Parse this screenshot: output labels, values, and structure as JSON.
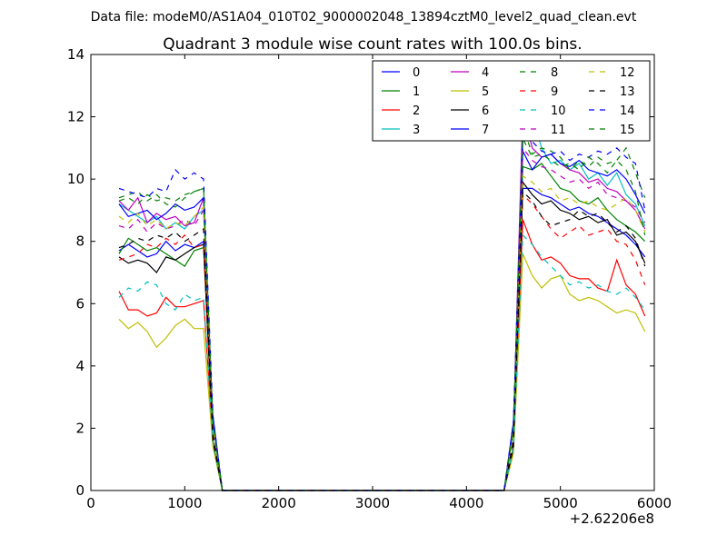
{
  "chart_data": {
    "type": "line",
    "suptitle": "Data file: modeM0/AS1A04_010T02_9000002048_13894cztM0_level2_quad_clean.evt",
    "title": "Quadrant 3 module wise count rates with 100.0s bins.",
    "xlabel": "",
    "ylabel": "",
    "x_offset_label": "+2.62206e8",
    "xlim": [
      0,
      6000
    ],
    "ylim": [
      0,
      14
    ],
    "xticks": [
      0,
      1000,
      2000,
      3000,
      4000,
      5000,
      6000
    ],
    "yticks": [
      0,
      2,
      4,
      6,
      8,
      10,
      12,
      14
    ],
    "legend_position": "top-right",
    "x": [
      300,
      400,
      500,
      600,
      700,
      800,
      900,
      1000,
      1100,
      1200,
      1300,
      1400,
      1500,
      1600,
      1700,
      1800,
      1900,
      2000,
      2100,
      2200,
      2300,
      2400,
      2500,
      2600,
      2700,
      2800,
      2900,
      3000,
      3100,
      3200,
      3300,
      3400,
      3500,
      3600,
      3700,
      3800,
      3900,
      4000,
      4100,
      4200,
      4300,
      4400,
      4500,
      4600,
      4700,
      4800,
      4900,
      5000,
      5100,
      5200,
      5300,
      5400,
      5500,
      5600,
      5700,
      5800,
      5900
    ],
    "series": [
      {
        "name": "0",
        "color": "#0000ff",
        "dash": "solid",
        "pre": [
          7.7,
          7.9,
          7.7,
          7.5,
          7.6,
          8.0,
          7.7,
          7.9,
          7.8,
          8.0
        ],
        "peak": 2.4,
        "post": [
          2.2,
          9.7,
          9.7,
          9.5,
          9.4,
          9.2,
          9.0,
          9.1,
          8.9,
          8.8,
          8.6,
          8.4,
          8.2,
          7.9,
          7.5
        ]
      },
      {
        "name": "1",
        "color": "#008000",
        "dash": "solid",
        "pre": [
          7.6,
          8.1,
          7.9,
          7.7,
          7.8,
          7.6,
          7.4,
          7.2,
          7.7,
          7.8
        ],
        "peak": 1.6,
        "post": [
          1.4,
          10.4,
          10.3,
          10.5,
          10.1,
          9.7,
          9.6,
          9.3,
          9.2,
          9.4,
          9.0,
          8.7,
          8.5,
          8.3,
          8.0
        ]
      },
      {
        "name": "2",
        "color": "#ff0000",
        "dash": "solid",
        "pre": [
          6.4,
          5.8,
          5.8,
          5.6,
          5.7,
          6.2,
          5.9,
          5.9,
          6.0,
          6.1
        ],
        "peak": 1.6,
        "post": [
          1.4,
          8.7,
          7.9,
          7.4,
          7.5,
          7.3,
          6.9,
          6.8,
          6.8,
          6.5,
          6.4,
          7.4,
          6.6,
          6.3,
          5.6
        ]
      },
      {
        "name": "3",
        "color": "#00bfbf",
        "dash": "solid",
        "pre": [
          9.2,
          9.0,
          8.8,
          8.6,
          8.8,
          8.4,
          8.6,
          8.4,
          8.8,
          9.0
        ],
        "peak": 2.2,
        "post": [
          2.0,
          11.2,
          12.0,
          11.0,
          10.5,
          10.6,
          10.3,
          10.5,
          10.0,
          10.2,
          9.8,
          10.2,
          9.5,
          9.2,
          8.5
        ]
      },
      {
        "name": "4",
        "color": "#bf00bf",
        "dash": "solid",
        "pre": [
          9.3,
          9.0,
          9.4,
          8.6,
          8.9,
          8.7,
          8.8,
          8.5,
          8.6,
          9.4
        ],
        "peak": 2.2,
        "post": [
          2.0,
          12.2,
          11.0,
          10.7,
          10.8,
          10.5,
          10.3,
          10.2,
          9.9,
          10.0,
          9.7,
          9.6,
          9.3,
          9.0,
          8.4
        ]
      },
      {
        "name": "5",
        "color": "#bfbf00",
        "dash": "solid",
        "pre": [
          5.5,
          5.2,
          5.4,
          5.1,
          4.6,
          4.9,
          5.3,
          5.5,
          5.2,
          5.2
        ],
        "peak": 1.4,
        "post": [
          1.2,
          7.6,
          6.9,
          6.5,
          6.8,
          6.9,
          6.3,
          6.1,
          6.2,
          6.1,
          5.9,
          5.7,
          5.8,
          5.7,
          5.1
        ]
      },
      {
        "name": "6",
        "color": "#000000",
        "dash": "solid",
        "pre": [
          7.5,
          7.3,
          7.4,
          7.3,
          7.0,
          7.5,
          7.4,
          7.6,
          7.8,
          7.9
        ],
        "peak": 1.6,
        "post": [
          1.4,
          9.9,
          9.5,
          9.2,
          9.3,
          9.0,
          8.9,
          8.7,
          8.8,
          8.6,
          8.7,
          8.2,
          8.3,
          8.0,
          7.3
        ]
      },
      {
        "name": "7",
        "color": "#0000ff",
        "dash": "solid",
        "pre": [
          9.2,
          8.8,
          8.9,
          9.0,
          8.7,
          8.9,
          9.2,
          9.0,
          9.1,
          9.4
        ],
        "peak": 2.2,
        "post": [
          2.0,
          10.9,
          10.3,
          10.7,
          10.8,
          10.5,
          10.4,
          10.6,
          10.3,
          10.2,
          10.1,
          10.3,
          10.0,
          9.5,
          8.9
        ]
      },
      {
        "name": "8",
        "color": "#008000",
        "dash": "dashed",
        "pre": [
          9.4,
          9.5,
          9.6,
          9.3,
          9.5,
          9.2,
          9.1,
          9.4,
          9.6,
          9.7
        ],
        "peak": 2.2,
        "post": [
          2.0,
          11.7,
          10.8,
          11.0,
          10.9,
          10.7,
          10.3,
          10.6,
          10.4,
          10.7,
          10.5,
          10.6,
          11.0,
          10.2,
          9.4
        ]
      },
      {
        "name": "9",
        "color": "#ff0000",
        "dash": "dashed",
        "pre": [
          7.4,
          7.5,
          7.6,
          7.9,
          7.8,
          8.1,
          7.9,
          8.2,
          7.8,
          7.9
        ],
        "peak": 1.8,
        "post": [
          1.6,
          9.5,
          9.2,
          8.8,
          8.4,
          8.1,
          8.3,
          8.5,
          8.2,
          8.3,
          8.4,
          8.0,
          7.9,
          7.4,
          6.6
        ]
      },
      {
        "name": "10",
        "color": "#00bfbf",
        "dash": "dashed",
        "pre": [
          6.2,
          6.5,
          6.4,
          6.7,
          6.6,
          6.0,
          5.8,
          6.3,
          6.1,
          6.2
        ],
        "peak": 1.6,
        "post": [
          1.4,
          8.2,
          7.9,
          7.5,
          7.2,
          6.9,
          6.6,
          6.7,
          6.5,
          6.6,
          6.4,
          6.3,
          6.5,
          6.2,
          5.8
        ]
      },
      {
        "name": "11",
        "color": "#bf00bf",
        "dash": "dashed",
        "pre": [
          8.5,
          8.4,
          8.7,
          8.3,
          8.6,
          8.4,
          8.5,
          8.7,
          8.5,
          9.0
        ],
        "peak": 2.0,
        "post": [
          1.8,
          11.0,
          10.6,
          10.4,
          10.3,
          10.1,
          9.9,
          10.0,
          9.7,
          9.9,
          9.5,
          9.4,
          9.3,
          9.1,
          8.6
        ]
      },
      {
        "name": "12",
        "color": "#bfbf00",
        "dash": "dashed",
        "pre": [
          8.8,
          8.6,
          8.9,
          8.5,
          8.7,
          8.4,
          8.6,
          8.5,
          8.8,
          9.1
        ],
        "peak": 2.0,
        "post": [
          1.8,
          10.1,
          9.9,
          9.6,
          9.7,
          9.3,
          9.4,
          9.2,
          9.3,
          9.1,
          9.0,
          9.2,
          9.4,
          9.0,
          8.3
        ]
      },
      {
        "name": "13",
        "color": "#000000",
        "dash": "dashed",
        "pre": [
          7.8,
          7.9,
          8.1,
          8.0,
          8.2,
          8.1,
          8.3,
          8.0,
          8.2,
          8.4
        ],
        "peak": 1.8,
        "post": [
          1.6,
          9.6,
          9.3,
          8.8,
          8.5,
          8.6,
          8.7,
          9.0,
          8.8,
          8.9,
          8.6,
          8.3,
          8.5,
          8.1,
          7.2
        ]
      },
      {
        "name": "14",
        "color": "#0000ff",
        "dash": "dashed",
        "pre": [
          9.7,
          9.6,
          9.5,
          9.4,
          9.7,
          9.6,
          10.3,
          10.0,
          10.2,
          10.0
        ],
        "peak": 2.4,
        "post": [
          2.2,
          11.5,
          11.2,
          10.9,
          10.8,
          10.9,
          10.6,
          10.8,
          10.7,
          10.9,
          10.8,
          11.0,
          10.7,
          10.5,
          9.0
        ]
      },
      {
        "name": "15",
        "color": "#008000",
        "dash": "dashed",
        "pre": [
          9.3,
          9.4,
          9.2,
          9.5,
          9.3,
          9.4,
          9.3,
          9.5,
          9.6,
          9.7
        ],
        "peak": 2.2,
        "post": [
          2.0,
          11.3,
          10.7,
          10.8,
          10.6,
          10.4,
          10.5,
          10.3,
          10.7,
          10.5,
          10.2,
          10.6,
          10.3,
          9.6,
          8.2
        ]
      }
    ]
  }
}
